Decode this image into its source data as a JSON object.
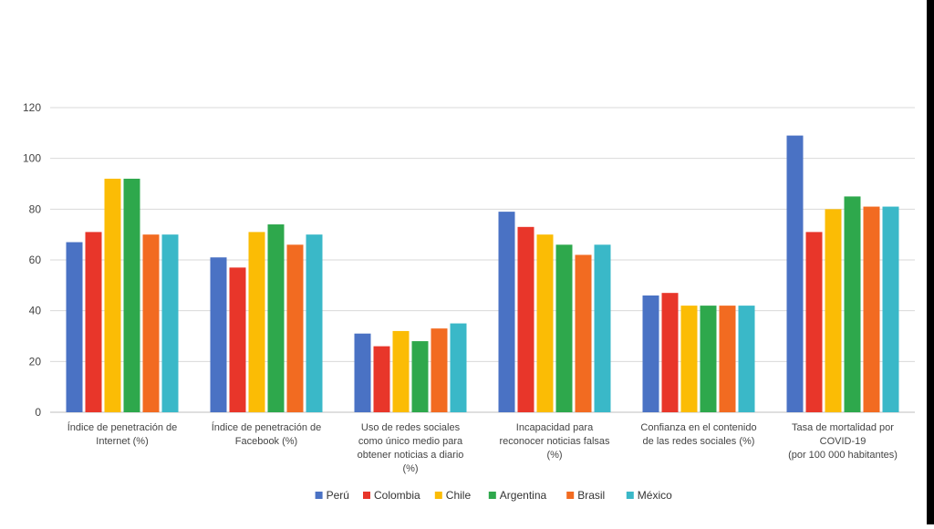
{
  "chart_data": {
    "type": "bar",
    "categories": [
      [
        "Índice de penetración de",
        "Internet (%)"
      ],
      [
        "Índice de penetración de",
        "Facebook (%)"
      ],
      [
        "Uso de redes sociales",
        "como único medio para",
        "obtener noticias a diario",
        "(%)"
      ],
      [
        "Incapacidad para",
        "reconocer noticias falsas",
        "(%)"
      ],
      [
        "Confianza en el contenido",
        "de las redes sociales (%)"
      ],
      [
        "Tasa de mortalidad por",
        "COVID-19",
        "(por 100 000 habitantes)"
      ]
    ],
    "series": [
      {
        "name": "Perú",
        "color": "#4a72c4",
        "values": [
          67,
          61,
          31,
          79,
          46,
          109
        ]
      },
      {
        "name": "Colombia",
        "color": "#e8362a",
        "values": [
          71,
          57,
          26,
          73,
          47,
          71
        ]
      },
      {
        "name": "Chile",
        "color": "#fbbc05",
        "values": [
          92,
          71,
          32,
          70,
          42,
          80
        ]
      },
      {
        "name": "Argentina",
        "color": "#2ea84c",
        "values": [
          92,
          74,
          28,
          66,
          42,
          85
        ]
      },
      {
        "name": "Brasil",
        "color": "#f26b21",
        "values": [
          70,
          66,
          33,
          62,
          42,
          81
        ]
      },
      {
        "name": "México",
        "color": "#3ab8c8",
        "values": [
          70,
          70,
          35,
          66,
          42,
          81
        ]
      }
    ],
    "yticks": [
      "0",
      "20",
      "40",
      "60",
      "80",
      "100",
      "120"
    ],
    "ylim": [
      0,
      120
    ],
    "grid": true,
    "legend_position": "bottom"
  }
}
